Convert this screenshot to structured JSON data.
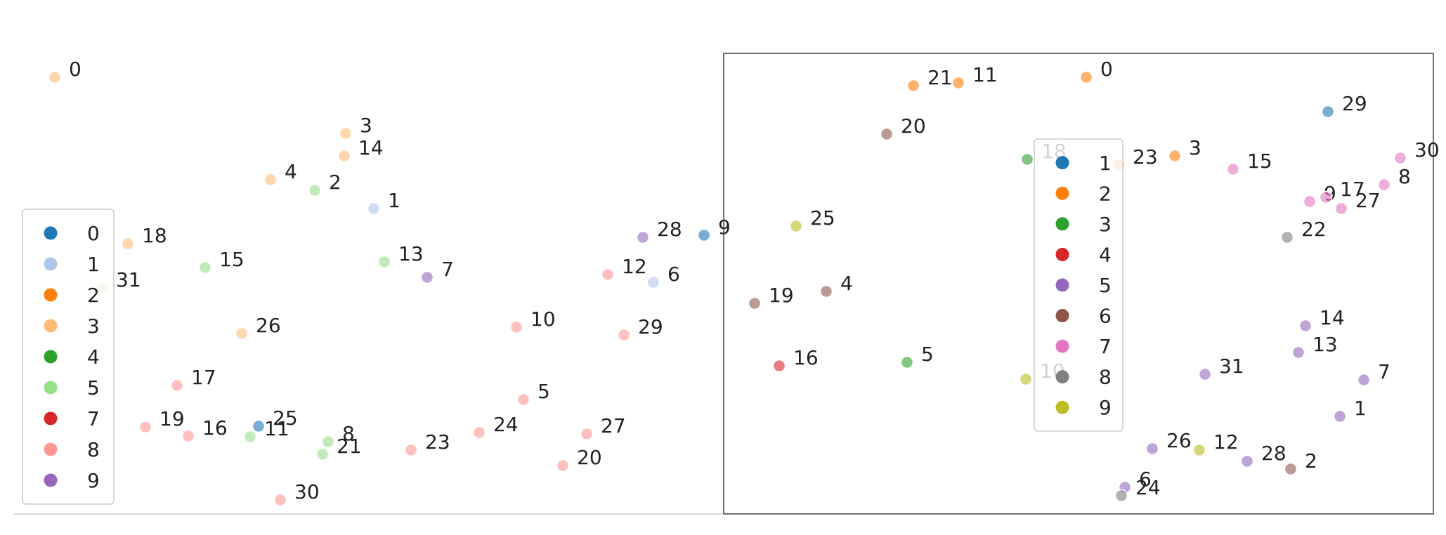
{
  "chart_data": [
    {
      "type": "scatter",
      "title": "",
      "xlabel": "",
      "ylabel": "",
      "grid": false,
      "legend_position": "left",
      "legend": [
        {
          "label": "0",
          "color": "#1f77b4"
        },
        {
          "label": "1",
          "color": "#aec7e8"
        },
        {
          "label": "2",
          "color": "#ff7f0e"
        },
        {
          "label": "3",
          "color": "#ffbb78"
        },
        {
          "label": "4",
          "color": "#2ca02c"
        },
        {
          "label": "5",
          "color": "#98df8a"
        },
        {
          "label": "7",
          "color": "#d62728"
        },
        {
          "label": "8",
          "color": "#ff9896"
        },
        {
          "label": "9",
          "color": "#9467bd"
        }
      ],
      "xlim": [
        0,
        1020
      ],
      "ylim": [
        0,
        720
      ],
      "points": [
        {
          "label": "0",
          "group": "3",
          "x": 58,
          "y": 622
        },
        {
          "label": "3",
          "group": "3",
          "x": 472,
          "y": 542
        },
        {
          "label": "14",
          "group": "3",
          "x": 470,
          "y": 510
        },
        {
          "label": "4",
          "group": "3",
          "x": 365,
          "y": 476
        },
        {
          "label": "2",
          "group": "5",
          "x": 428,
          "y": 461
        },
        {
          "label": "1",
          "group": "1",
          "x": 512,
          "y": 435
        },
        {
          "label": "18",
          "group": "3",
          "x": 162,
          "y": 385
        },
        {
          "label": "28",
          "group": "9",
          "x": 895,
          "y": 394
        },
        {
          "label": "9",
          "group": "0",
          "x": 982,
          "y": 397
        },
        {
          "label": "15",
          "group": "5",
          "x": 272,
          "y": 351
        },
        {
          "label": "13",
          "group": "5",
          "x": 527,
          "y": 359
        },
        {
          "label": "7",
          "group": "9",
          "x": 588,
          "y": 337
        },
        {
          "label": "31",
          "group": "5",
          "x": 125,
          "y": 322
        },
        {
          "label": "12",
          "group": "8",
          "x": 845,
          "y": 341
        },
        {
          "label": "6",
          "group": "1",
          "x": 910,
          "y": 330
        },
        {
          "label": "10",
          "group": "8",
          "x": 715,
          "y": 266
        },
        {
          "label": "29",
          "group": "8",
          "x": 868,
          "y": 255
        },
        {
          "label": "26",
          "group": "3",
          "x": 324,
          "y": 257
        },
        {
          "label": "17",
          "group": "8",
          "x": 232,
          "y": 183
        },
        {
          "label": "5",
          "group": "8",
          "x": 725,
          "y": 163
        },
        {
          "label": "19",
          "group": "8",
          "x": 187,
          "y": 124
        },
        {
          "label": "16",
          "group": "8",
          "x": 248,
          "y": 111
        },
        {
          "label": "25",
          "group": "0",
          "x": 348,
          "y": 125
        },
        {
          "label": "11",
          "group": "5",
          "x": 336,
          "y": 110
        },
        {
          "label": "8",
          "group": "5",
          "x": 447,
          "y": 103
        },
        {
          "label": "21",
          "group": "5",
          "x": 439,
          "y": 85
        },
        {
          "label": "23",
          "group": "8",
          "x": 565,
          "y": 91
        },
        {
          "label": "24",
          "group": "8",
          "x": 662,
          "y": 116
        },
        {
          "label": "27",
          "group": "8",
          "x": 815,
          "y": 114
        },
        {
          "label": "20",
          "group": "8",
          "x": 781,
          "y": 69
        },
        {
          "label": "30",
          "group": "8",
          "x": 379,
          "y": 20
        }
      ]
    },
    {
      "type": "scatter",
      "title": "",
      "xlabel": "",
      "ylabel": "",
      "grid": false,
      "legend_position": "center",
      "legend": [
        {
          "label": "1",
          "color": "#1f77b4"
        },
        {
          "label": "2",
          "color": "#ff7f0e"
        },
        {
          "label": "3",
          "color": "#2ca02c"
        },
        {
          "label": "4",
          "color": "#d62728"
        },
        {
          "label": "5",
          "color": "#9467bd"
        },
        {
          "label": "6",
          "color": "#8c564b"
        },
        {
          "label": "7",
          "color": "#e377c2"
        },
        {
          "label": "8",
          "color": "#7f7f7f"
        },
        {
          "label": "9",
          "color": "#bcbd22"
        }
      ],
      "xlim": [
        0,
        1010
      ],
      "ylim": [
        0,
        650
      ],
      "points": [
        {
          "label": "21",
          "group": "2",
          "x": 270,
          "y": 610
        },
        {
          "label": "11",
          "group": "2",
          "x": 334,
          "y": 614
        },
        {
          "label": "0",
          "group": "2",
          "x": 516,
          "y": 622
        },
        {
          "label": "29",
          "group": "1",
          "x": 860,
          "y": 573
        },
        {
          "label": "20",
          "group": "6",
          "x": 232,
          "y": 541
        },
        {
          "label": "18",
          "group": "3",
          "x": 432,
          "y": 505
        },
        {
          "label": "23",
          "group": "2",
          "x": 562,
          "y": 497
        },
        {
          "label": "3",
          "group": "2",
          "x": 642,
          "y": 510
        },
        {
          "label": "15",
          "group": "7",
          "x": 725,
          "y": 491
        },
        {
          "label": "30",
          "group": "7",
          "x": 963,
          "y": 507
        },
        {
          "label": "8",
          "group": "7",
          "x": 940,
          "y": 469
        },
        {
          "label": "9",
          "group": "7",
          "x": 834,
          "y": 445
        },
        {
          "label": "17",
          "group": "7",
          "x": 857,
          "y": 451
        },
        {
          "label": "27",
          "group": "7",
          "x": 879,
          "y": 435
        },
        {
          "label": "25",
          "group": "9",
          "x": 103,
          "y": 410
        },
        {
          "label": "22",
          "group": "8",
          "x": 802,
          "y": 394
        },
        {
          "label": "19",
          "group": "6",
          "x": 44,
          "y": 300
        },
        {
          "label": "4",
          "group": "6",
          "x": 146,
          "y": 317
        },
        {
          "label": "14",
          "group": "5",
          "x": 828,
          "y": 268
        },
        {
          "label": "13",
          "group": "5",
          "x": 818,
          "y": 230
        },
        {
          "label": "7",
          "group": "5",
          "x": 911,
          "y": 191
        },
        {
          "label": "16",
          "group": "4",
          "x": 79,
          "y": 211
        },
        {
          "label": "5",
          "group": "3",
          "x": 261,
          "y": 216
        },
        {
          "label": "10",
          "group": "9",
          "x": 430,
          "y": 192
        },
        {
          "label": "31",
          "group": "5",
          "x": 685,
          "y": 199
        },
        {
          "label": "1",
          "group": "5",
          "x": 877,
          "y": 139
        },
        {
          "label": "26",
          "group": "5",
          "x": 610,
          "y": 93
        },
        {
          "label": "12",
          "group": "9",
          "x": 677,
          "y": 91
        },
        {
          "label": "28",
          "group": "5",
          "x": 745,
          "y": 75
        },
        {
          "label": "2",
          "group": "6",
          "x": 807,
          "y": 64
        },
        {
          "label": "6",
          "group": "5",
          "x": 571,
          "y": 38
        },
        {
          "label": "24",
          "group": "8",
          "x": 566,
          "y": 26
        }
      ]
    }
  ]
}
